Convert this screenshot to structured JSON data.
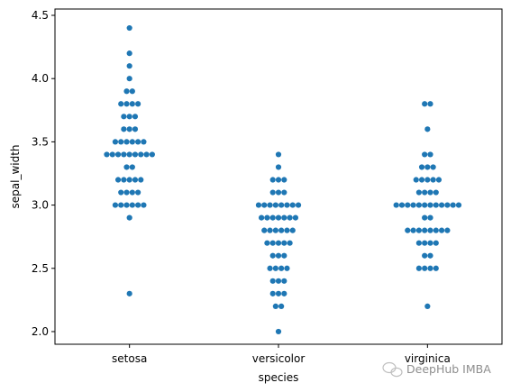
{
  "chart_data": {
    "type": "scatter",
    "subtype": "swarm",
    "title": "",
    "xlabel": "species",
    "ylabel": "sepal_width",
    "categories": [
      "setosa",
      "versicolor",
      "virginica"
    ],
    "ylim": [
      1.9,
      4.55
    ],
    "yticks": [
      2.0,
      2.5,
      3.0,
      3.5,
      4.0,
      4.5
    ],
    "ytick_labels": [
      "2.0",
      "2.5",
      "3.0",
      "3.5",
      "4.0",
      "4.5"
    ],
    "grid": false,
    "legend": "none",
    "marker_color": "#1f77b4",
    "series": [
      {
        "values": [
          3.5,
          3.0,
          3.2,
          3.1,
          3.6,
          3.9,
          3.4,
          3.4,
          2.9,
          3.1,
          3.7,
          3.4,
          3.0,
          3.0,
          4.0,
          4.4,
          3.9,
          3.5,
          3.8,
          3.8,
          3.4,
          3.7,
          3.6,
          3.3,
          3.4,
          3.0,
          3.4,
          3.5,
          3.4,
          3.2,
          3.1,
          3.4,
          4.1,
          4.2,
          3.1,
          3.2,
          3.5,
          3.6,
          3.0,
          3.4,
          3.5,
          2.3,
          3.2,
          3.5,
          3.8,
          3.0,
          3.8,
          3.2,
          3.7,
          3.3
        ]
      },
      {
        "values": [
          3.2,
          3.2,
          3.1,
          2.3,
          2.8,
          2.8,
          3.3,
          2.4,
          2.9,
          2.7,
          2.0,
          3.0,
          2.2,
          2.9,
          2.9,
          3.1,
          3.0,
          2.7,
          2.2,
          2.5,
          3.2,
          2.8,
          2.5,
          2.8,
          2.9,
          3.0,
          2.8,
          3.0,
          2.9,
          2.6,
          2.4,
          2.4,
          2.7,
          2.7,
          3.0,
          3.4,
          3.1,
          2.3,
          3.0,
          2.5,
          2.6,
          3.0,
          2.6,
          2.3,
          2.7,
          3.0,
          2.9,
          2.9,
          2.5,
          2.8
        ]
      },
      {
        "values": [
          3.3,
          2.7,
          3.0,
          2.9,
          3.0,
          3.0,
          2.5,
          2.9,
          2.5,
          3.6,
          3.2,
          2.7,
          3.0,
          2.5,
          2.8,
          3.2,
          3.0,
          3.8,
          2.6,
          2.2,
          3.2,
          2.8,
          2.8,
          2.7,
          3.3,
          3.2,
          2.8,
          3.0,
          2.8,
          3.0,
          2.8,
          3.8,
          2.8,
          2.8,
          2.6,
          3.0,
          3.4,
          3.1,
          3.0,
          3.1,
          3.1,
          3.1,
          2.7,
          3.2,
          3.3,
          3.0,
          2.5,
          3.0,
          3.4,
          3.0
        ]
      }
    ]
  },
  "watermark": {
    "text": "DeepHub IMBA",
    "icon": "wechat-icon"
  }
}
